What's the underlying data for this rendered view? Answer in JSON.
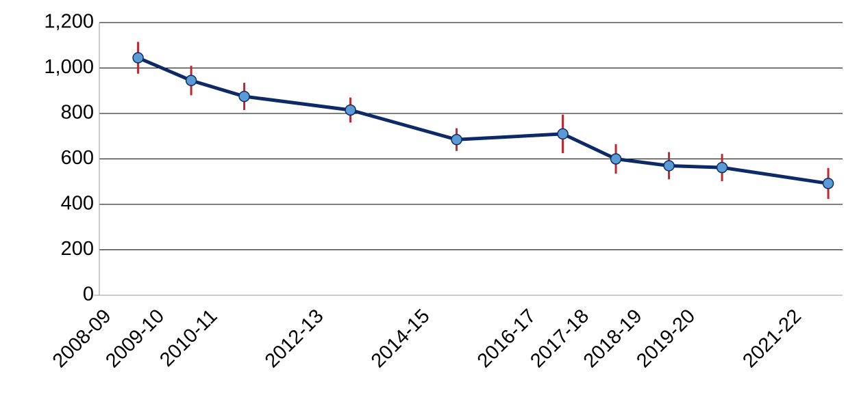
{
  "chart_data": {
    "type": "line",
    "x": [
      "2008-09",
      "2009-10",
      "2010-11",
      "2012-13",
      "2014-15",
      "2016-17",
      "2017-18",
      "2018-19",
      "2019-20",
      "2021-22"
    ],
    "values": [
      1045,
      945,
      875,
      815,
      685,
      710,
      600,
      570,
      562,
      492
    ],
    "errors": [
      70,
      65,
      60,
      55,
      50,
      85,
      65,
      60,
      60,
      68
    ],
    "color": "#0d2a66",
    "marker_color": "#5b9bd5",
    "error_color": "#c0272d",
    "ylim": [
      0,
      1200
    ],
    "yticks": [
      0,
      200,
      400,
      600,
      800,
      {
        "value": 1000,
        "label": "1,000"
      },
      {
        "value": 1200,
        "label": "1,200"
      }
    ],
    "grid": true
  }
}
